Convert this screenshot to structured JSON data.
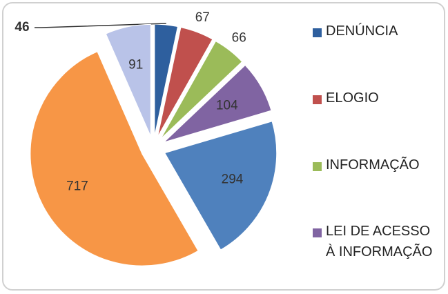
{
  "chart_data": {
    "type": "pie",
    "categories": [
      "DENÚNCIA",
      "ELOGIO",
      "INFORMAÇÃO",
      "LEI DE ACESSO À INFORMAÇÃO",
      null,
      null,
      null
    ],
    "values": [
      46,
      67,
      66,
      104,
      294,
      717,
      91
    ],
    "colors": [
      "#2e5f9e",
      "#c0504d",
      "#9bbb59",
      "#8064a2",
      "#4f81bd",
      "#f79646",
      "#b9c3e8"
    ],
    "legend": "right"
  }
}
